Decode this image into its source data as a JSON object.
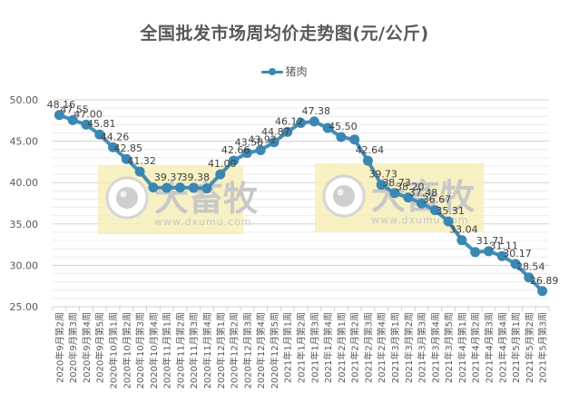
{
  "chart_data": {
    "type": "line",
    "title": "全国批发市场周均价走势图(元/公斤)",
    "xlabel": "",
    "ylabel": "",
    "ylim": [
      25,
      50
    ],
    "yticks": [
      "25.00",
      "30.00",
      "35.00",
      "40.00",
      "45.00",
      "50.00"
    ],
    "ytick_values": [
      25,
      30,
      35,
      40,
      45,
      50
    ],
    "grid": true,
    "legend_position": "top",
    "categories": [
      "2020年9月第2周",
      "2020年9月第3周",
      "2020年9月第4周",
      "2020年9月第5周",
      "2020年10月第1周",
      "2020年10月第2周",
      "2020年10月第3周",
      "2020年10月第4周",
      "2020年11月第1周",
      "2020年11月第2周",
      "2020年11月第3周",
      "2020年11月第4周",
      "2020年12月第1周",
      "2020年12月第2周",
      "2020年12月第3周",
      "2020年12月第4周",
      "2020年12月第5周",
      "2021年1月第1周",
      "2021年1月第2周",
      "2021年1月第3周",
      "2021年1月第4周",
      "2021年2月第1周",
      "2021年2月第2周",
      "2021年2月第3周",
      "2021年2月第4周",
      "2021年3月第1周",
      "2021年3月第2周",
      "2021年3月第3周",
      "2021年3月第4周",
      "2021年3月第5周",
      "2021年4月第1周",
      "2021年4月第2周",
      "2021年4月第3周",
      "2021年4月第4周",
      "2021年5月第1周",
      "2021年5月第2周",
      "2021年5月第3周"
    ],
    "series": [
      {
        "name": "猪肉",
        "color": "#3a87b3",
        "values": [
          48.16,
          47.55,
          47.0,
          45.81,
          44.26,
          42.85,
          41.32,
          39.4,
          39.37,
          39.4,
          39.38,
          39.3,
          41.0,
          42.66,
          43.58,
          43.92,
          44.87,
          46.12,
          47.2,
          47.38,
          46.6,
          45.5,
          45.2,
          42.64,
          39.73,
          38.73,
          38.2,
          37.48,
          36.67,
          35.31,
          33.04,
          31.6,
          31.71,
          31.11,
          30.17,
          28.54,
          26.89
        ],
        "labels": [
          "48.16",
          "47.55",
          "47.00",
          "45.81",
          "44.26",
          "42.85",
          "41.32",
          "",
          "39.37",
          "",
          "39.38",
          "",
          "41.00",
          "42.66",
          "43.58",
          "43.92",
          "44.87",
          "46.12",
          "",
          "47.38",
          "",
          "45.50",
          "",
          "42.64",
          "39.73",
          "38.73",
          "38.20",
          "37.48",
          "36.67",
          "35.31",
          "33.04",
          "",
          "31.71",
          "31.11",
          "30.17",
          "28.54",
          "26.89"
        ]
      }
    ]
  },
  "legend": {
    "items": [
      {
        "label": "猪肉",
        "color": "#3a87b3"
      }
    ]
  },
  "watermark": {
    "brand": "大畜牧",
    "url": "www.dxumu.com"
  },
  "colors": {
    "line": "#3a87b3",
    "gridline": "#d9d9d9",
    "watermark_bg": "#f6efb8"
  }
}
